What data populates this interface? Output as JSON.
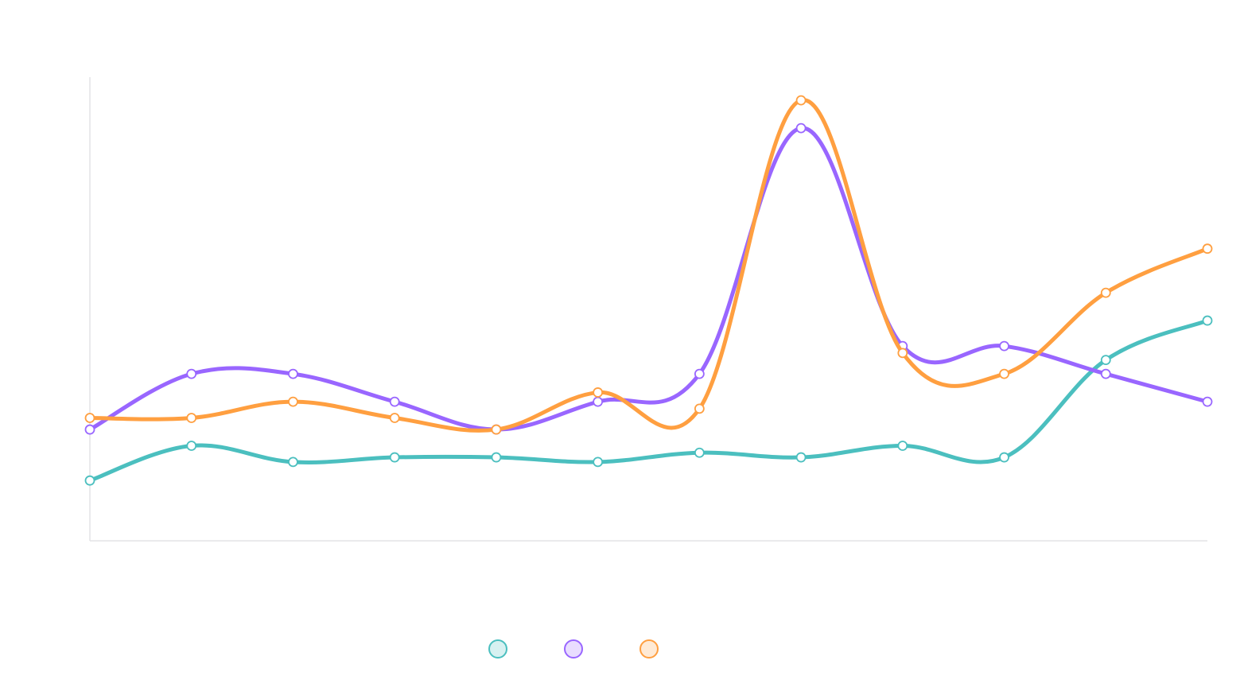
{
  "chart_data": {
    "type": "line",
    "title": "",
    "xlabel": "",
    "ylabel": "",
    "categories": [
      "",
      "",
      "",
      "",
      "",
      "",
      "",
      "",
      "",
      "",
      "",
      ""
    ],
    "ylim": [
      0,
      100
    ],
    "grid": false,
    "legend_position": "bottom-center",
    "series": [
      {
        "color": "#4bbfbf",
        "values": [
          13,
          20.5,
          17,
          18,
          18,
          17,
          19,
          18,
          20.5,
          18,
          39,
          47.5
        ]
      },
      {
        "color": "#9966ff",
        "values": [
          24,
          36,
          36,
          30,
          24,
          30,
          36,
          89,
          42,
          42,
          36,
          30
        ]
      },
      {
        "color": "#ff9f40",
        "values": [
          26.5,
          26.5,
          30,
          26.5,
          24,
          32,
          28.5,
          95,
          40.5,
          36,
          53.5,
          63
        ]
      }
    ]
  }
}
